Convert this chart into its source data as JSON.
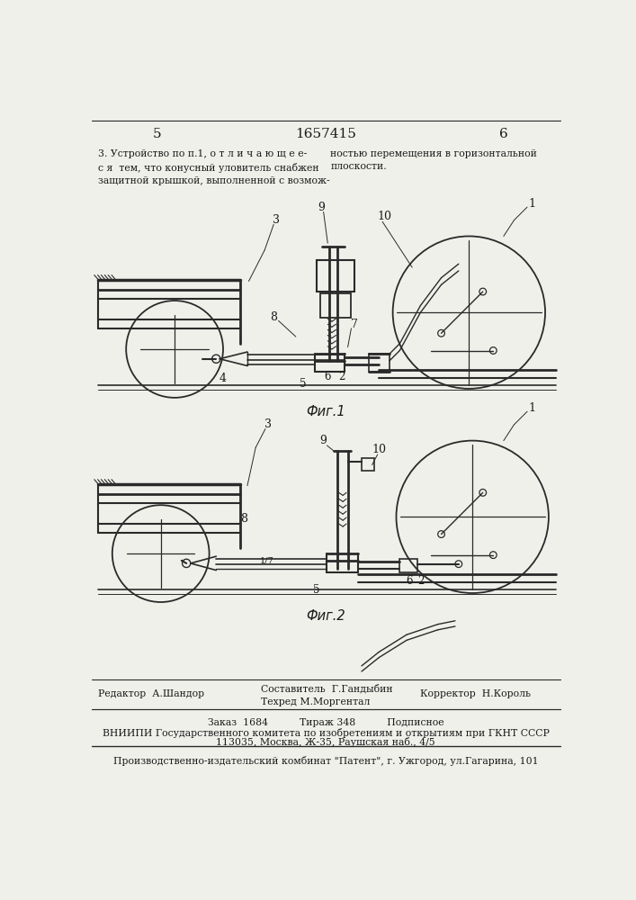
{
  "page_numbers": [
    "5",
    "1657415",
    "6"
  ],
  "top_text_left": "3. Устройство по п.1, о т л и ч а ю щ е е-\nс я  тем, что конусный уловитель снабжен\nзащитной крышкой, выполненной с возмож-",
  "top_text_right": "ностью перемещения в горизонтальной\nплоскости.",
  "fig1_caption": "Фиг.1",
  "fig2_caption": "Фиг.2",
  "footer_line1_left": "Редактор  А.Шандор",
  "footer_line1_center": "Составитель  Г.Гандыбин\nТехред М.Моргентал",
  "footer_line1_right": "Корректор  Н.Король",
  "footer_line2": "Заказ  1684          Тираж 348          Подписное",
  "footer_line3": "ВНИИПИ Государственного комитета по изобретениям и открытиям при ГКНТ СССР",
  "footer_line4": "113035, Москва, Ж-35, Раушская наб., 4/5",
  "footer_line5": "Производственно-издательский комбинат \"Патент\", г. Ужгород, ул.Гагарина, 101",
  "bg_color": "#f0f0eb",
  "line_color": "#2a2a2a",
  "text_color": "#1a1a1a"
}
